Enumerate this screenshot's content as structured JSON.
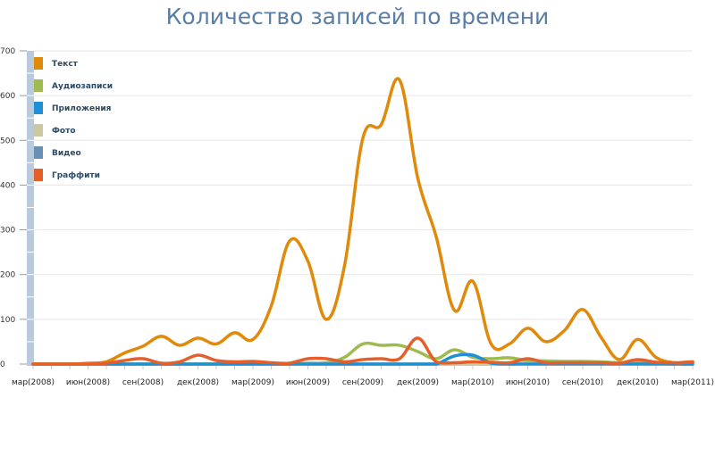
{
  "title": "Количество записей по времени",
  "chart_data": {
    "type": "line",
    "title": "Количество записей по времени",
    "xlabel": "",
    "ylabel": "",
    "ylim": [
      0,
      700
    ],
    "yticks": [
      0,
      100,
      200,
      300,
      400,
      500,
      600,
      700
    ],
    "grid": true,
    "legend_position": "top-left",
    "x_tick_labels": [
      "мар(2008)",
      "июн(2008)",
      "сен(2008)",
      "дек(2008)",
      "мар(2009)",
      "июн(2009)",
      "сен(2009)",
      "дек(2009)",
      "мар(2010)",
      "июн(2010)",
      "сен(2010)",
      "дек(2010)",
      "мар(2011)"
    ],
    "x": [
      "03.2008",
      "04.2008",
      "05.2008",
      "06.2008",
      "07.2008",
      "08.2008",
      "09.2008",
      "10.2008",
      "11.2008",
      "12.2008",
      "01.2009",
      "02.2009",
      "03.2009",
      "04.2009",
      "05.2009",
      "06.2009",
      "07.2009",
      "08.2009",
      "09.2009",
      "10.2009",
      "11.2009",
      "12.2009",
      "01.2010",
      "02.2010",
      "03.2010",
      "04.2010",
      "05.2010",
      "06.2010",
      "07.2010",
      "08.2010",
      "09.2010",
      "10.2010",
      "11.2010",
      "12.2010",
      "01.2011",
      "02.2011",
      "03.2011"
    ],
    "series": [
      {
        "name": "Текст",
        "color": "#e08a0b",
        "values": [
          0,
          0,
          0,
          2,
          5,
          25,
          40,
          62,
          42,
          58,
          45,
          70,
          55,
          130,
          275,
          230,
          100,
          220,
          505,
          535,
          635,
          415,
          285,
          120,
          185,
          45,
          45,
          80,
          50,
          75,
          122,
          60,
          10,
          55,
          15,
          3,
          5
        ]
      },
      {
        "name": "Аудиозаписи",
        "color": "#9dbb4f",
        "values": [
          0,
          0,
          0,
          0,
          0,
          0,
          0,
          0,
          0,
          0,
          0,
          0,
          0,
          0,
          0,
          2,
          3,
          15,
          45,
          42,
          42,
          28,
          12,
          32,
          15,
          12,
          14,
          8,
          7,
          6,
          6,
          5,
          3,
          4,
          2,
          2,
          4
        ]
      },
      {
        "name": "Приложения",
        "color": "#1f8fd6",
        "values": [
          0,
          0,
          0,
          0,
          0,
          0,
          0,
          0,
          0,
          0,
          0,
          0,
          0,
          0,
          0,
          0,
          0,
          0,
          0,
          0,
          0,
          0,
          0,
          18,
          20,
          2,
          0,
          0,
          0,
          0,
          0,
          0,
          0,
          0,
          0,
          0,
          0
        ]
      },
      {
        "name": "Фото",
        "color": "#ccc9a0",
        "values": [
          0,
          0,
          0,
          0,
          0,
          0,
          0,
          0,
          0,
          0,
          0,
          0,
          0,
          0,
          0,
          0,
          0,
          0,
          0,
          0,
          0,
          0,
          0,
          0,
          0,
          0,
          3,
          2,
          2,
          2,
          2,
          2,
          2,
          6,
          2,
          1,
          2
        ]
      },
      {
        "name": "Видео",
        "color": "#6690b5",
        "values": [
          0,
          0,
          0,
          0,
          0,
          0,
          0,
          0,
          0,
          0,
          0,
          0,
          0,
          0,
          0,
          0,
          0,
          0,
          0,
          0,
          0,
          0,
          0,
          0,
          0,
          0,
          0,
          1,
          1,
          1,
          1,
          1,
          1,
          5,
          1,
          0,
          0
        ]
      },
      {
        "name": "Граффити",
        "color": "#e65f2a",
        "values": [
          0,
          0,
          0,
          0,
          2,
          8,
          12,
          2,
          5,
          20,
          8,
          5,
          6,
          3,
          2,
          12,
          12,
          5,
          10,
          12,
          12,
          58,
          5,
          3,
          5,
          4,
          3,
          12,
          3,
          3,
          3,
          3,
          2,
          10,
          4,
          3,
          5
        ]
      }
    ]
  },
  "legend": {
    "items": [
      {
        "label": "Текст",
        "color": "#e08a0b"
      },
      {
        "label": "Аудиозаписи",
        "color": "#9dbb4f"
      },
      {
        "label": "Приложения",
        "color": "#1f8fd6"
      },
      {
        "label": "Фото",
        "color": "#ccc9a0"
      },
      {
        "label": "Видео",
        "color": "#6690b5"
      },
      {
        "label": "Граффити",
        "color": "#e65f2a"
      }
    ]
  },
  "axis": {
    "bar_color": "#b8cadb",
    "grid_color": "#e6e6e6"
  }
}
